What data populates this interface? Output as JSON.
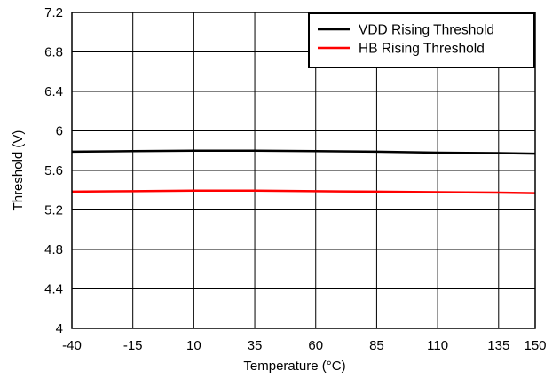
{
  "chart_data": {
    "type": "line",
    "xlabel": "Temperature (°C)",
    "ylabel": "Threshold (V)",
    "xlim": [
      -40,
      150
    ],
    "ylim": [
      4,
      7.2
    ],
    "x_ticks": [
      -40,
      -15,
      10,
      35,
      60,
      85,
      110,
      135,
      150
    ],
    "x_tick_labels": [
      "-40",
      "-15",
      "10",
      "35",
      "60",
      "85",
      "110",
      "135",
      "150"
    ],
    "y_ticks": [
      4,
      4.4,
      4.8,
      5.2,
      5.6,
      6,
      6.4,
      6.8,
      7.2
    ],
    "y_tick_labels": [
      "4",
      "4.4",
      "4.8",
      "5.2",
      "5.6",
      "6",
      "6.4",
      "6.8",
      "7.2"
    ],
    "grid": true,
    "legend_position": "top-right",
    "series": [
      {
        "name": "VDD Rising Threshold",
        "color": "#000000",
        "x": [
          -40,
          -15,
          10,
          35,
          60,
          85,
          110,
          135,
          150
        ],
        "y": [
          5.79,
          5.795,
          5.8,
          5.8,
          5.795,
          5.79,
          5.78,
          5.775,
          5.77
        ]
      },
      {
        "name": "HB Rising Threshold",
        "color": "#ff0000",
        "x": [
          -40,
          -15,
          10,
          35,
          60,
          85,
          110,
          135,
          150
        ],
        "y": [
          5.385,
          5.39,
          5.395,
          5.395,
          5.39,
          5.385,
          5.38,
          5.375,
          5.37
        ]
      }
    ]
  }
}
